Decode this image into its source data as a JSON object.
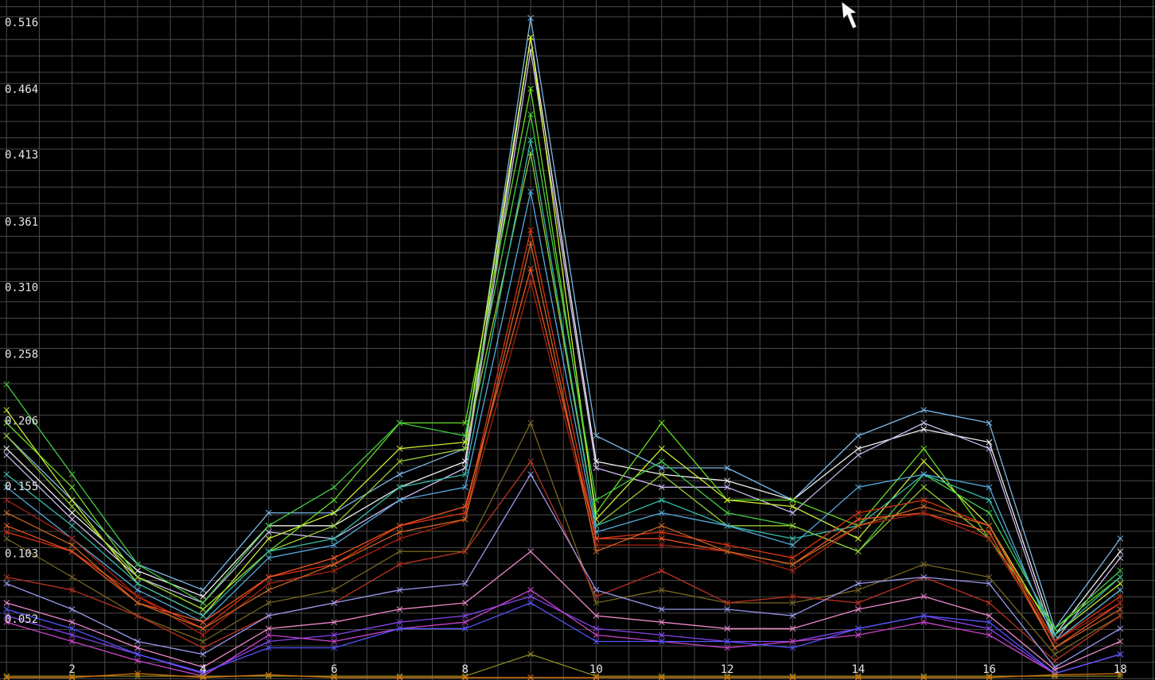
{
  "chart_data": {
    "type": "line",
    "x": [
      1,
      2,
      3,
      4,
      5,
      6,
      7,
      8,
      9,
      10,
      11,
      12,
      13,
      14,
      15,
      16,
      17,
      18
    ],
    "xlim": [
      0.9,
      18.53
    ],
    "xticks": [
      2,
      4,
      6,
      8,
      10,
      12,
      14,
      16,
      18
    ],
    "ylim": [
      0,
      0.529
    ],
    "yticks": [
      0.052,
      0.103,
      0.155,
      0.206,
      0.258,
      {
        "value": 0.31,
        "label": "0.310"
      },
      0.361,
      0.413,
      0.464,
      0.516
    ],
    "grid": true,
    "grid_divisions": 4,
    "series": [
      {
        "color": "#7ab8e8",
        "values": [
          0.19,
          0.14,
          0.09,
          0.07,
          0.13,
          0.13,
          0.16,
          0.18,
          0.515,
          0.19,
          0.165,
          0.165,
          0.14,
          0.19,
          0.21,
          0.2,
          0.04,
          0.11
        ]
      },
      {
        "color": "#f0f0f0",
        "values": [
          0.18,
          0.13,
          0.085,
          0.065,
          0.12,
          0.12,
          0.15,
          0.17,
          0.5,
          0.17,
          0.16,
          0.155,
          0.14,
          0.18,
          0.195,
          0.185,
          0.035,
          0.1
        ]
      },
      {
        "color": "#ccbbee",
        "values": [
          0.175,
          0.125,
          0.08,
          0.06,
          0.115,
          0.11,
          0.14,
          0.165,
          0.49,
          0.165,
          0.15,
          0.15,
          0.13,
          0.175,
          0.2,
          0.18,
          0.03,
          0.095
        ]
      },
      {
        "color": "#66dd22",
        "values": [
          0.2,
          0.15,
          0.08,
          0.055,
          0.1,
          0.14,
          0.2,
          0.2,
          0.46,
          0.13,
          0.2,
          0.14,
          0.14,
          0.12,
          0.18,
          0.11,
          0.04,
          0.08
        ]
      },
      {
        "color": "#ccee33",
        "values": [
          0.21,
          0.14,
          0.075,
          0.05,
          0.11,
          0.13,
          0.18,
          0.185,
          0.5,
          0.125,
          0.18,
          0.14,
          0.135,
          0.11,
          0.17,
          0.12,
          0.035,
          0.075
        ]
      },
      {
        "color": "#44cc44",
        "values": [
          0.23,
          0.16,
          0.09,
          0.06,
          0.12,
          0.15,
          0.2,
          0.19,
          0.44,
          0.14,
          0.17,
          0.13,
          0.12,
          0.1,
          0.16,
          0.13,
          0.04,
          0.085
        ]
      },
      {
        "color": "#99cc33",
        "values": [
          0.19,
          0.135,
          0.08,
          0.055,
          0.1,
          0.12,
          0.17,
          0.18,
          0.41,
          0.12,
          0.16,
          0.12,
          0.12,
          0.1,
          0.15,
          0.11,
          0.03,
          0.07
        ]
      },
      {
        "color": "#33bbaa",
        "values": [
          0.16,
          0.12,
          0.075,
          0.05,
          0.1,
          0.11,
          0.15,
          0.16,
          0.42,
          0.12,
          0.14,
          0.12,
          0.11,
          0.12,
          0.16,
          0.14,
          0.035,
          0.08
        ]
      },
      {
        "color": "#55aadd",
        "values": [
          0.15,
          0.11,
          0.07,
          0.045,
          0.095,
          0.105,
          0.14,
          0.15,
          0.38,
          0.115,
          0.13,
          0.12,
          0.105,
          0.15,
          0.16,
          0.15,
          0.03,
          0.07
        ]
      },
      {
        "color": "#dd3311",
        "values": [
          0.115,
          0.1,
          0.065,
          0.04,
          0.08,
          0.09,
          0.12,
          0.13,
          0.35,
          0.11,
          0.115,
          0.105,
          0.095,
          0.13,
          0.14,
          0.12,
          0.03,
          0.065
        ]
      },
      {
        "color": "#ee5522",
        "values": [
          0.12,
          0.1,
          0.06,
          0.045,
          0.08,
          0.095,
          0.12,
          0.135,
          0.32,
          0.11,
          0.11,
          0.1,
          0.09,
          0.125,
          0.13,
          0.115,
          0.025,
          0.06
        ]
      },
      {
        "color": "#aa2211",
        "values": [
          0.14,
          0.11,
          0.065,
          0.035,
          0.075,
          0.085,
          0.11,
          0.125,
          0.31,
          0.105,
          0.105,
          0.1,
          0.085,
          0.12,
          0.13,
          0.11,
          0.03,
          0.06
        ]
      },
      {
        "color": "#cc6622",
        "values": [
          0.13,
          0.105,
          0.06,
          0.04,
          0.07,
          0.09,
          0.115,
          0.125,
          0.34,
          0.1,
          0.12,
          0.1,
          0.09,
          0.12,
          0.135,
          0.12,
          0.025,
          0.055
        ]
      },
      {
        "color": "#776622",
        "values": [
          0.11,
          0.08,
          0.05,
          0.03,
          0.06,
          0.07,
          0.1,
          0.1,
          0.2,
          0.06,
          0.07,
          0.06,
          0.06,
          0.07,
          0.09,
          0.08,
          0.02,
          0.05
        ]
      },
      {
        "color": "#bb3322",
        "values": [
          0.08,
          0.07,
          0.05,
          0.025,
          0.05,
          0.06,
          0.09,
          0.1,
          0.17,
          0.065,
          0.085,
          0.06,
          0.065,
          0.06,
          0.08,
          0.06,
          0.015,
          0.05
        ]
      },
      {
        "color": "#9999ee",
        "values": [
          0.075,
          0.055,
          0.03,
          0.02,
          0.05,
          0.06,
          0.07,
          0.075,
          0.16,
          0.07,
          0.055,
          0.055,
          0.05,
          0.075,
          0.08,
          0.075,
          0.01,
          0.04
        ]
      },
      {
        "color": "#ee88cc",
        "values": [
          0.06,
          0.045,
          0.025,
          0.01,
          0.04,
          0.045,
          0.055,
          0.06,
          0.1,
          0.05,
          0.045,
          0.04,
          0.04,
          0.055,
          0.065,
          0.05,
          0.008,
          0.03
        ]
      },
      {
        "color": "#8844ee",
        "values": [
          0.05,
          0.035,
          0.02,
          0.005,
          0.03,
          0.035,
          0.045,
          0.05,
          0.065,
          0.04,
          0.035,
          0.03,
          0.03,
          0.04,
          0.05,
          0.04,
          0.005,
          0.02
        ]
      },
      {
        "color": "#cc44cc",
        "values": [
          0.045,
          0.03,
          0.015,
          0.003,
          0.035,
          0.03,
          0.04,
          0.045,
          0.07,
          0.035,
          0.03,
          0.025,
          0.03,
          0.035,
          0.045,
          0.035,
          0.005,
          0.02
        ]
      },
      {
        "color": "#5555ff",
        "values": [
          0.055,
          0.04,
          0.02,
          0.006,
          0.025,
          0.025,
          0.04,
          0.04,
          0.06,
          0.03,
          0.03,
          0.03,
          0.025,
          0.04,
          0.05,
          0.045,
          0.005,
          0.02
        ]
      },
      {
        "color": "#888822",
        "values": [
          0.003,
          0.003,
          0.003,
          0.003,
          0.003,
          0.003,
          0.003,
          0.003,
          0.02,
          0.003,
          0.003,
          0.003,
          0.003,
          0.003,
          0.003,
          0.003,
          0.003,
          0.003
        ]
      },
      {
        "color": "#dd7711",
        "values": [
          0.002,
          0.002,
          0.005,
          0.002,
          0.004,
          0.002,
          0.002,
          0.002,
          0.002,
          0.002,
          0.002,
          0.002,
          0.002,
          0.002,
          0.002,
          0.002,
          0.004,
          0.005
        ]
      }
    ]
  }
}
